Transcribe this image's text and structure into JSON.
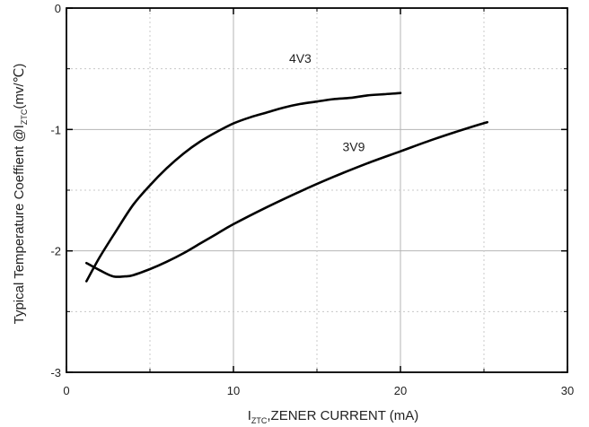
{
  "chart_data": {
    "type": "line",
    "xlabel": {
      "main": "I",
      "sub": "ZTC",
      "rest": ",ZENER CURRENT (mA)"
    },
    "ylabel": {
      "main": "Typical Temperature Coeffient @I",
      "sub": "ZTC",
      "rest": "(mv/℃)"
    },
    "xlim": [
      0,
      30
    ],
    "ylim": [
      -3,
      0
    ],
    "xticks": [
      0,
      10,
      20,
      30
    ],
    "yticks": [
      0,
      -1,
      -2,
      -3
    ],
    "xtick_labels": [
      "0",
      "10",
      "20",
      "30"
    ],
    "ytick_labels": [
      "0",
      "-1",
      "-2",
      "-3"
    ],
    "grid": true,
    "series": [
      {
        "name": "4V3",
        "label_at": [
          14.0,
          -0.45
        ],
        "x": [
          1.2,
          2,
          3,
          4,
          5,
          6,
          7,
          8,
          9,
          10,
          11,
          12,
          13,
          14,
          15,
          16,
          17,
          18,
          19,
          20
        ],
        "y": [
          -2.25,
          -2.05,
          -1.83,
          -1.62,
          -1.46,
          -1.32,
          -1.2,
          -1.1,
          -1.02,
          -0.95,
          -0.9,
          -0.86,
          -0.82,
          -0.79,
          -0.77,
          -0.75,
          -0.74,
          -0.72,
          -0.71,
          -0.7
        ]
      },
      {
        "name": "3V9",
        "label_at": [
          17.2,
          -1.18
        ],
        "x": [
          1.2,
          2,
          2.8,
          3.5,
          4,
          5,
          6,
          7,
          8,
          9,
          10,
          12,
          14,
          16,
          18,
          20,
          22,
          24,
          25.2
        ],
        "y": [
          -2.1,
          -2.16,
          -2.21,
          -2.21,
          -2.2,
          -2.15,
          -2.09,
          -2.02,
          -1.94,
          -1.86,
          -1.78,
          -1.64,
          -1.51,
          -1.39,
          -1.28,
          -1.18,
          -1.08,
          -0.99,
          -0.94
        ]
      }
    ]
  }
}
